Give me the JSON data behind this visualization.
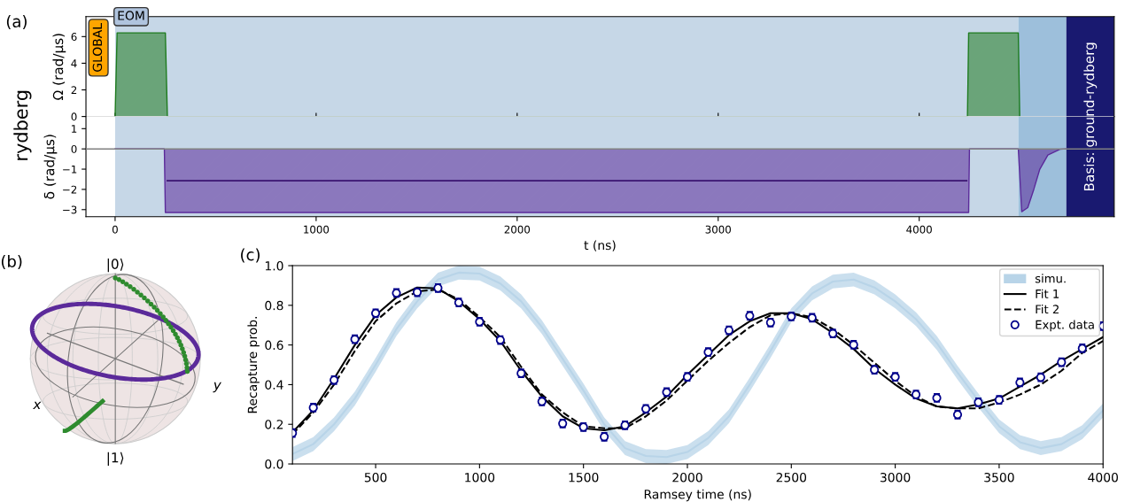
{
  "chart_data": [
    {
      "type": "area",
      "ylabel": "Ω (rad/µs)",
      "xlim": [
        -145,
        4970
      ],
      "ylim": [
        0,
        7.5
      ],
      "xticks": [
        0,
        1000,
        2000,
        3000,
        4000
      ],
      "yticks": [
        0,
        2,
        4,
        6
      ],
      "tick_labels": "y",
      "series": [
        {
          "type": "area",
          "color": "#1e7b1e",
          "x": [
            0,
            10,
            250,
            260,
            4240,
            4246,
            4493,
            4500
          ],
          "values": [
            0,
            6.28,
            6.28,
            0,
            0,
            6.28,
            6.28,
            0
          ]
        }
      ],
      "bands": [
        {
          "axis": "x",
          "from": 0,
          "to": 4493,
          "label": "EOM",
          "color": "#c6d7e7"
        },
        {
          "axis": "x",
          "from": 4493,
          "to": 4732,
          "color": "#9dbfdb"
        },
        {
          "axis": "x",
          "from": 4732,
          "to": 4970,
          "label": "Basis: ground-rydberg",
          "color": "#191970"
        }
      ],
      "annotations": [
        "(a)",
        "rydberg",
        "GLOBAL"
      ]
    },
    {
      "type": "area",
      "ylabel": "δ (rad/µs)",
      "xlabel": "t (ns)",
      "xlim": [
        -145,
        4970
      ],
      "ylim": [
        -3.35,
        1.6
      ],
      "xticks": [
        0,
        1000,
        2000,
        3000,
        4000
      ],
      "yticks": [
        {
          "value": -3,
          "label": "−3"
        },
        {
          "value": -2,
          "label": "−2"
        },
        {
          "value": -1,
          "label": "−1"
        },
        0,
        1
      ],
      "series": [
        {
          "type": "area",
          "color": "#5b2a9a",
          "x": [
            0,
            245,
            250,
            4246,
            4250,
            4493,
            4510,
            4540,
            4570,
            4600,
            4640,
            4700,
            4732
          ],
          "values": [
            0,
            0,
            -3.14,
            -3.14,
            0,
            0,
            -3.1,
            -2.9,
            -2.0,
            -1.0,
            -0.3,
            -0.02,
            0
          ]
        },
        {
          "type": "line",
          "color": "#3a1470",
          "x": [
            260,
            2250,
            4236
          ],
          "values": [
            -1.57,
            -1.57,
            -1.57
          ]
        }
      ],
      "bands": [
        {
          "axis": "x",
          "from": 0,
          "to": 4493,
          "color": "#c6d7e7"
        },
        {
          "axis": "x",
          "from": 4493,
          "to": 4732,
          "color": "#9dbfdb"
        },
        {
          "axis": "x",
          "from": 4732,
          "to": 4970,
          "color": "#191970"
        }
      ]
    },
    {
      "type": "other",
      "annotations": [
        "(b)",
        "|0⟩",
        "|1⟩",
        "x",
        "y"
      ]
    },
    {
      "type": "line",
      "xlabel": "Ramsey time (ns)",
      "ylabel": "Recapture prob.",
      "xlim": [
        100,
        4000
      ],
      "ylim": [
        0,
        1
      ],
      "xticks": [
        500,
        1000,
        1500,
        2000,
        2500,
        3000,
        3500,
        4000
      ],
      "yticks": [
        {
          "value": 0,
          "label": "0.0"
        },
        {
          "value": 0.2,
          "label": "0.2"
        },
        {
          "value": 0.4,
          "label": "0.4"
        },
        {
          "value": 0.6,
          "label": "0.6"
        },
        {
          "value": 0.8,
          "label": "0.8"
        },
        {
          "value": 1,
          "label": "1.0"
        }
      ],
      "legend": "top right",
      "grid": false,
      "annotations": [
        "(c)"
      ],
      "x": [
        100,
        200,
        300,
        400,
        500,
        600,
        700,
        800,
        900,
        1000,
        1100,
        1200,
        1300,
        1400,
        1500,
        1600,
        1700,
        1800,
        1900,
        2000,
        2100,
        2200,
        2300,
        2400,
        2500,
        2600,
        2700,
        2800,
        2900,
        3000,
        3100,
        3200,
        3300,
        3400,
        3500,
        3600,
        3700,
        3800,
        3900,
        4000
      ],
      "series": [
        {
          "name": "simu.",
          "type": "line",
          "color": "#b8d4e8",
          "values": [
            0.05,
            0.1,
            0.2,
            0.33,
            0.5,
            0.68,
            0.82,
            0.93,
            0.965,
            0.96,
            0.91,
            0.82,
            0.69,
            0.53,
            0.37,
            0.2,
            0.08,
            0.04,
            0.035,
            0.06,
            0.13,
            0.24,
            0.4,
            0.57,
            0.75,
            0.86,
            0.92,
            0.93,
            0.89,
            0.82,
            0.73,
            0.61,
            0.46,
            0.32,
            0.19,
            0.11,
            0.08,
            0.1,
            0.16,
            0.27
          ],
          "lower": [
            0.015,
            0.065,
            0.165,
            0.295,
            0.465,
            0.645,
            0.785,
            0.895,
            0.93,
            0.925,
            0.875,
            0.785,
            0.655,
            0.495,
            0.335,
            0.165,
            0.045,
            0.005,
            0.0,
            0.025,
            0.095,
            0.205,
            0.365,
            0.535,
            0.715,
            0.825,
            0.885,
            0.895,
            0.855,
            0.785,
            0.695,
            0.575,
            0.425,
            0.285,
            0.155,
            0.075,
            0.045,
            0.065,
            0.125,
            0.235
          ],
          "upper": [
            0.085,
            0.135,
            0.235,
            0.365,
            0.535,
            0.715,
            0.855,
            0.965,
            1.0,
            0.995,
            0.945,
            0.855,
            0.725,
            0.565,
            0.405,
            0.235,
            0.115,
            0.075,
            0.07,
            0.095,
            0.165,
            0.275,
            0.435,
            0.605,
            0.785,
            0.895,
            0.955,
            0.965,
            0.925,
            0.855,
            0.765,
            0.645,
            0.495,
            0.355,
            0.225,
            0.145,
            0.115,
            0.135,
            0.195,
            0.305
          ]
        },
        {
          "name": "Fit 1",
          "type": "line",
          "color": "#000000",
          "line_style": "solid",
          "values": [
            0.16,
            0.27,
            0.43,
            0.6,
            0.75,
            0.84,
            0.89,
            0.885,
            0.82,
            0.73,
            0.62,
            0.47,
            0.34,
            0.24,
            0.18,
            0.17,
            0.19,
            0.26,
            0.34,
            0.45,
            0.55,
            0.65,
            0.72,
            0.76,
            0.76,
            0.73,
            0.66,
            0.58,
            0.48,
            0.4,
            0.33,
            0.29,
            0.28,
            0.3,
            0.33,
            0.39,
            0.45,
            0.52,
            0.58,
            0.64
          ]
        },
        {
          "name": "Fit 2",
          "type": "line",
          "color": "#000000",
          "line_style": "dashed",
          "values": [
            0.15,
            0.26,
            0.4,
            0.57,
            0.72,
            0.81,
            0.87,
            0.88,
            0.83,
            0.74,
            0.64,
            0.49,
            0.35,
            0.26,
            0.19,
            0.18,
            0.18,
            0.24,
            0.32,
            0.42,
            0.52,
            0.61,
            0.69,
            0.75,
            0.76,
            0.74,
            0.68,
            0.6,
            0.51,
            0.42,
            0.34,
            0.29,
            0.28,
            0.28,
            0.31,
            0.35,
            0.4,
            0.47,
            0.56,
            0.62
          ]
        },
        {
          "name": "Expt. data",
          "type": "scatter",
          "color": "#00008b",
          "marker": "circle",
          "values": [
            0.156,
            0.284,
            0.423,
            0.629,
            0.76,
            0.862,
            0.866,
            0.887,
            0.814,
            0.717,
            0.625,
            0.457,
            0.315,
            0.204,
            0.186,
            0.137,
            0.195,
            0.278,
            0.362,
            0.439,
            0.564,
            0.674,
            0.747,
            0.713,
            0.744,
            0.737,
            0.658,
            0.601,
            0.475,
            0.439,
            0.35,
            0.333,
            0.249,
            0.311,
            0.323,
            0.411,
            0.437,
            0.513,
            0.583,
            0.695
          ],
          "errors": [
            0.02,
            0.02,
            0.02,
            0.02,
            0.02,
            0.02,
            0.02,
            0.02,
            0.02,
            0.02,
            0.02,
            0.02,
            0.02,
            0.02,
            0.02,
            0.02,
            0.02,
            0.02,
            0.02,
            0.02,
            0.02,
            0.02,
            0.02,
            0.02,
            0.02,
            0.02,
            0.02,
            0.02,
            0.02,
            0.02,
            0.02,
            0.02,
            0.02,
            0.02,
            0.02,
            0.02,
            0.02,
            0.02,
            0.02,
            0.02
          ]
        }
      ]
    }
  ]
}
